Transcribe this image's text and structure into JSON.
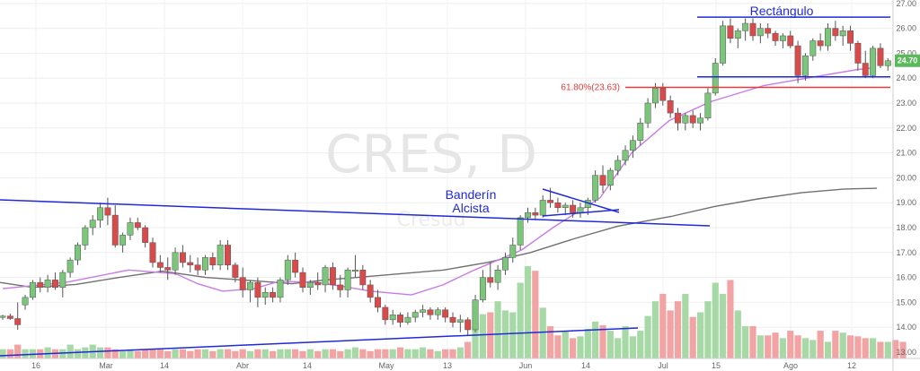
{
  "chart_data": {
    "type": "candlestick",
    "watermark": {
      "symbol": "CRES, D",
      "name": "Cresud"
    },
    "ylim": [
      13.0,
      27.0
    ],
    "y_ticks": [
      "13.00",
      "14.00",
      "15.00",
      "16.00",
      "17.00",
      "18.00",
      "19.00",
      "20.00",
      "21.00",
      "22.00",
      "23.00",
      "24.00",
      "25.00",
      "26.00",
      "27.00"
    ],
    "x_ticks": [
      "16",
      "Mar",
      "14",
      "Abr",
      "14",
      "May",
      "13",
      "Jun",
      "14",
      "Jul",
      "15",
      "Ago",
      "12"
    ],
    "last_price": "24.70",
    "colors": {
      "up": "#7bc67b",
      "down": "#d94b4b",
      "vol_up": "#a7d9a7",
      "vol_down": "#f2a4a4",
      "sma_fast": "#c77be6",
      "sma_slow": "#707070",
      "annotation": "#1f2bd6",
      "fib": "#e23b3b",
      "last_badge": "#5bb85b"
    },
    "candles": [
      [
        14.4,
        14.5,
        14.3,
        14.45
      ],
      [
        14.45,
        14.55,
        14.3,
        14.35
      ],
      [
        14.35,
        15.0,
        13.9,
        14.1
      ],
      [
        14.9,
        15.3,
        14.7,
        15.2
      ],
      [
        15.2,
        15.9,
        15.1,
        15.8
      ],
      [
        15.8,
        16.0,
        15.4,
        15.6
      ],
      [
        15.6,
        16.1,
        15.4,
        15.9
      ],
      [
        15.9,
        16.2,
        15.5,
        15.6
      ],
      [
        15.6,
        16.3,
        15.2,
        16.2
      ],
      [
        16.2,
        16.8,
        16.0,
        16.7
      ],
      [
        16.7,
        17.4,
        16.5,
        17.3
      ],
      [
        17.3,
        18.1,
        17.1,
        18.0
      ],
      [
        18.0,
        18.5,
        17.7,
        18.3
      ],
      [
        18.3,
        19.0,
        18.0,
        18.8
      ],
      [
        18.8,
        19.2,
        18.1,
        18.5
      ],
      [
        18.5,
        18.9,
        17.2,
        17.3
      ],
      [
        17.3,
        17.8,
        17.0,
        17.7
      ],
      [
        17.7,
        18.4,
        17.5,
        18.2
      ],
      [
        18.2,
        18.4,
        17.9,
        18.0
      ],
      [
        18.0,
        18.1,
        17.2,
        17.4
      ],
      [
        17.4,
        17.6,
        16.4,
        16.6
      ],
      [
        16.6,
        16.9,
        16.2,
        16.4
      ],
      [
        16.4,
        16.8,
        15.9,
        16.3
      ],
      [
        16.3,
        17.2,
        16.1,
        17.0
      ],
      [
        17.0,
        17.3,
        16.4,
        16.6
      ],
      [
        16.6,
        16.9,
        16.2,
        16.5
      ],
      [
        16.5,
        16.8,
        16.1,
        16.3
      ],
      [
        16.3,
        16.9,
        16.1,
        16.8
      ],
      [
        16.8,
        17.0,
        16.3,
        16.5
      ],
      [
        16.5,
        17.5,
        16.3,
        17.3
      ],
      [
        17.3,
        17.5,
        16.3,
        16.5
      ],
      [
        16.5,
        16.6,
        15.8,
        16.0
      ],
      [
        16.0,
        16.4,
        15.2,
        15.5
      ],
      [
        15.5,
        15.9,
        15.0,
        15.8
      ],
      [
        15.8,
        16.0,
        14.8,
        15.2
      ],
      [
        15.2,
        15.6,
        14.9,
        15.4
      ],
      [
        15.4,
        15.6,
        15.0,
        15.2
      ],
      [
        15.2,
        16.0,
        15.0,
        15.9
      ],
      [
        15.9,
        16.9,
        15.7,
        16.7
      ],
      [
        16.7,
        17.0,
        16.0,
        16.2
      ],
      [
        16.2,
        16.4,
        15.4,
        15.6
      ],
      [
        15.6,
        15.9,
        15.3,
        15.8
      ],
      [
        15.8,
        16.2,
        15.5,
        15.7
      ],
      [
        15.7,
        16.5,
        15.4,
        16.4
      ],
      [
        16.4,
        16.6,
        15.5,
        15.7
      ],
      [
        15.7,
        16.1,
        15.2,
        15.5
      ],
      [
        15.5,
        16.4,
        15.2,
        16.3
      ],
      [
        16.3,
        16.9,
        16.0,
        16.3
      ],
      [
        16.3,
        16.5,
        15.5,
        15.7
      ],
      [
        15.7,
        15.9,
        15.0,
        15.2
      ],
      [
        15.2,
        15.5,
        14.6,
        14.8
      ],
      [
        14.8,
        14.9,
        14.1,
        14.3
      ],
      [
        14.3,
        14.7,
        14.1,
        14.5
      ],
      [
        14.5,
        14.6,
        14.0,
        14.2
      ],
      [
        14.2,
        14.6,
        14.1,
        14.4
      ],
      [
        14.4,
        14.7,
        14.2,
        14.6
      ],
      [
        14.6,
        14.9,
        14.4,
        14.7
      ],
      [
        14.7,
        14.8,
        14.3,
        14.5
      ],
      [
        14.5,
        14.8,
        14.3,
        14.7
      ],
      [
        14.7,
        14.8,
        14.2,
        14.4
      ],
      [
        14.4,
        14.6,
        14.0,
        14.2
      ],
      [
        14.2,
        14.5,
        13.8,
        14.3
      ],
      [
        14.3,
        14.4,
        13.7,
        13.9
      ],
      [
        13.9,
        15.3,
        13.8,
        15.1
      ],
      [
        15.1,
        16.3,
        15.0,
        16.0
      ],
      [
        16.0,
        16.6,
        15.6,
        15.8
      ],
      [
        15.8,
        16.5,
        15.5,
        16.3
      ],
      [
        16.3,
        17.0,
        16.1,
        16.8
      ],
      [
        16.8,
        17.6,
        16.6,
        17.3
      ],
      [
        17.3,
        18.5,
        17.1,
        18.4
      ],
      [
        18.4,
        18.8,
        18.2,
        18.6
      ],
      [
        18.6,
        18.8,
        18.3,
        18.5
      ],
      [
        18.5,
        19.3,
        18.4,
        19.1
      ],
      [
        19.1,
        19.6,
        18.8,
        19.0
      ],
      [
        19.0,
        19.2,
        18.6,
        18.8
      ],
      [
        18.8,
        19.0,
        18.5,
        18.9
      ],
      [
        18.9,
        19.1,
        18.4,
        18.6
      ],
      [
        18.6,
        19.0,
        18.4,
        18.8
      ],
      [
        18.8,
        19.2,
        18.5,
        19.1
      ],
      [
        19.1,
        20.3,
        19.0,
        20.1
      ],
      [
        20.1,
        20.5,
        19.4,
        19.7
      ],
      [
        19.7,
        20.4,
        19.5,
        20.3
      ],
      [
        20.3,
        20.9,
        20.1,
        20.7
      ],
      [
        20.7,
        21.3,
        20.5,
        21.1
      ],
      [
        21.1,
        21.7,
        20.8,
        21.5
      ],
      [
        21.5,
        22.4,
        21.3,
        22.2
      ],
      [
        22.2,
        23.2,
        22.0,
        23.0
      ],
      [
        23.0,
        23.8,
        22.8,
        23.6
      ],
      [
        23.6,
        23.8,
        22.9,
        23.1
      ],
      [
        23.1,
        23.3,
        22.4,
        22.6
      ],
      [
        22.6,
        22.8,
        21.9,
        22.2
      ],
      [
        22.2,
        22.6,
        21.9,
        22.5
      ],
      [
        22.5,
        22.7,
        22.0,
        22.2
      ],
      [
        22.2,
        22.6,
        21.9,
        22.4
      ],
      [
        22.4,
        23.6,
        22.3,
        23.4
      ],
      [
        23.4,
        24.8,
        23.3,
        24.6
      ],
      [
        24.6,
        26.3,
        24.5,
        26.1
      ],
      [
        26.1,
        26.4,
        25.4,
        25.6
      ],
      [
        25.6,
        26.0,
        25.2,
        25.9
      ],
      [
        25.9,
        26.4,
        25.5,
        26.2
      ],
      [
        26.2,
        26.4,
        25.5,
        25.7
      ],
      [
        25.7,
        26.2,
        25.4,
        26.0
      ],
      [
        26.0,
        26.2,
        25.6,
        25.8
      ],
      [
        25.8,
        25.9,
        25.3,
        25.5
      ],
      [
        25.5,
        25.8,
        25.2,
        25.7
      ],
      [
        25.7,
        25.9,
        25.2,
        25.3
      ],
      [
        25.3,
        25.5,
        23.8,
        24.1
      ],
      [
        24.1,
        25.0,
        23.9,
        24.9
      ],
      [
        24.9,
        25.6,
        24.7,
        25.5
      ],
      [
        25.5,
        25.8,
        25.1,
        25.3
      ],
      [
        25.3,
        26.2,
        25.1,
        26.0
      ],
      [
        26.0,
        26.3,
        25.5,
        25.7
      ],
      [
        25.7,
        26.1,
        25.3,
        25.9
      ],
      [
        25.9,
        26.1,
        25.1,
        25.4
      ],
      [
        25.4,
        25.5,
        24.3,
        24.6
      ],
      [
        24.6,
        25.1,
        24.0,
        24.1
      ],
      [
        24.1,
        25.3,
        24.0,
        25.2
      ],
      [
        25.2,
        25.4,
        24.4,
        24.5
      ],
      [
        24.5,
        24.8,
        24.3,
        24.7
      ]
    ],
    "volumes": [
      0.1,
      0.1,
      0.15,
      0.1,
      0.1,
      0.1,
      0.12,
      0.1,
      0.1,
      0.15,
      0.1,
      0.12,
      0.15,
      0.12,
      0.12,
      0.1,
      0.08,
      0.1,
      0.08,
      0.1,
      0.1,
      0.1,
      0.08,
      0.1,
      0.1,
      0.08,
      0.1,
      0.1,
      0.08,
      0.1,
      0.1,
      0.08,
      0.1,
      0.08,
      0.1,
      0.1,
      0.08,
      0.1,
      0.1,
      0.1,
      0.08,
      0.1,
      0.08,
      0.1,
      0.1,
      0.08,
      0.1,
      0.12,
      0.1,
      0.08,
      0.1,
      0.1,
      0.1,
      0.12,
      0.1,
      0.1,
      0.12,
      0.1,
      0.08,
      0.1,
      0.1,
      0.12,
      0.18,
      0.4,
      0.48,
      0.5,
      0.62,
      0.52,
      0.5,
      0.82,
      1.0,
      0.95,
      0.55,
      0.35,
      0.25,
      0.3,
      0.22,
      0.24,
      0.32,
      0.4,
      0.36,
      0.3,
      0.22,
      0.35,
      0.24,
      0.3,
      0.46,
      0.62,
      0.7,
      0.52,
      0.62,
      0.7,
      0.45,
      0.5,
      0.62,
      0.82,
      0.7,
      0.85,
      0.52,
      0.35,
      0.35,
      0.25,
      0.25,
      0.28,
      0.22,
      0.3,
      0.25,
      0.22,
      0.2,
      0.3,
      0.18,
      0.3,
      0.28,
      0.25,
      0.24,
      0.22,
      0.22,
      0.18,
      0.18,
      0.2,
      0.18
    ],
    "sma_fast": [
      [
        0,
        15.55
      ],
      [
        20,
        15.8
      ],
      [
        40,
        16.3
      ],
      [
        55,
        16.15
      ],
      [
        62,
        15.75
      ],
      [
        70,
        15.45
      ],
      [
        80,
        15.55
      ],
      [
        88,
        15.85
      ],
      [
        100,
        15.8
      ],
      [
        110,
        15.6
      ],
      [
        117,
        15.45
      ],
      [
        130,
        15.3
      ],
      [
        140,
        15.7
      ],
      [
        150,
        16.3
      ],
      [
        165,
        17.1
      ],
      [
        175,
        18.0
      ],
      [
        190,
        19.2
      ],
      [
        200,
        21.0
      ],
      [
        212,
        22.3
      ],
      [
        225,
        23.05
      ],
      [
        242,
        23.7
      ],
      [
        258,
        24.05
      ],
      [
        272,
        24.35
      ],
      [
        276,
        24.4
      ]
    ],
    "sma_slow": [
      [
        0,
        15.8
      ],
      [
        30,
        15.6
      ],
      [
        70,
        15.72
      ],
      [
        110,
        16.0
      ],
      [
        150,
        16.25
      ],
      [
        190,
        16.0
      ],
      [
        240,
        15.85
      ],
      [
        270,
        15.75
      ],
      [
        300,
        15.9
      ],
      [
        330,
        16.0
      ],
      [
        370,
        16.15
      ],
      [
        410,
        16.3
      ],
      [
        450,
        16.6
      ],
      [
        490,
        17.0
      ],
      [
        530,
        17.55
      ],
      [
        570,
        18.05
      ],
      [
        620,
        18.45
      ],
      [
        660,
        18.85
      ],
      [
        700,
        19.15
      ],
      [
        740,
        19.4
      ],
      [
        780,
        19.55
      ],
      [
        810,
        19.58
      ]
    ],
    "annotations": {
      "rect_label": "Rectángulo",
      "flag_label_1": "Banderín",
      "flag_label_2": "Alcista",
      "fib_label": "61.80%(23.63)",
      "resistance": 26.45,
      "support": 24.05,
      "fib": 23.63
    }
  }
}
